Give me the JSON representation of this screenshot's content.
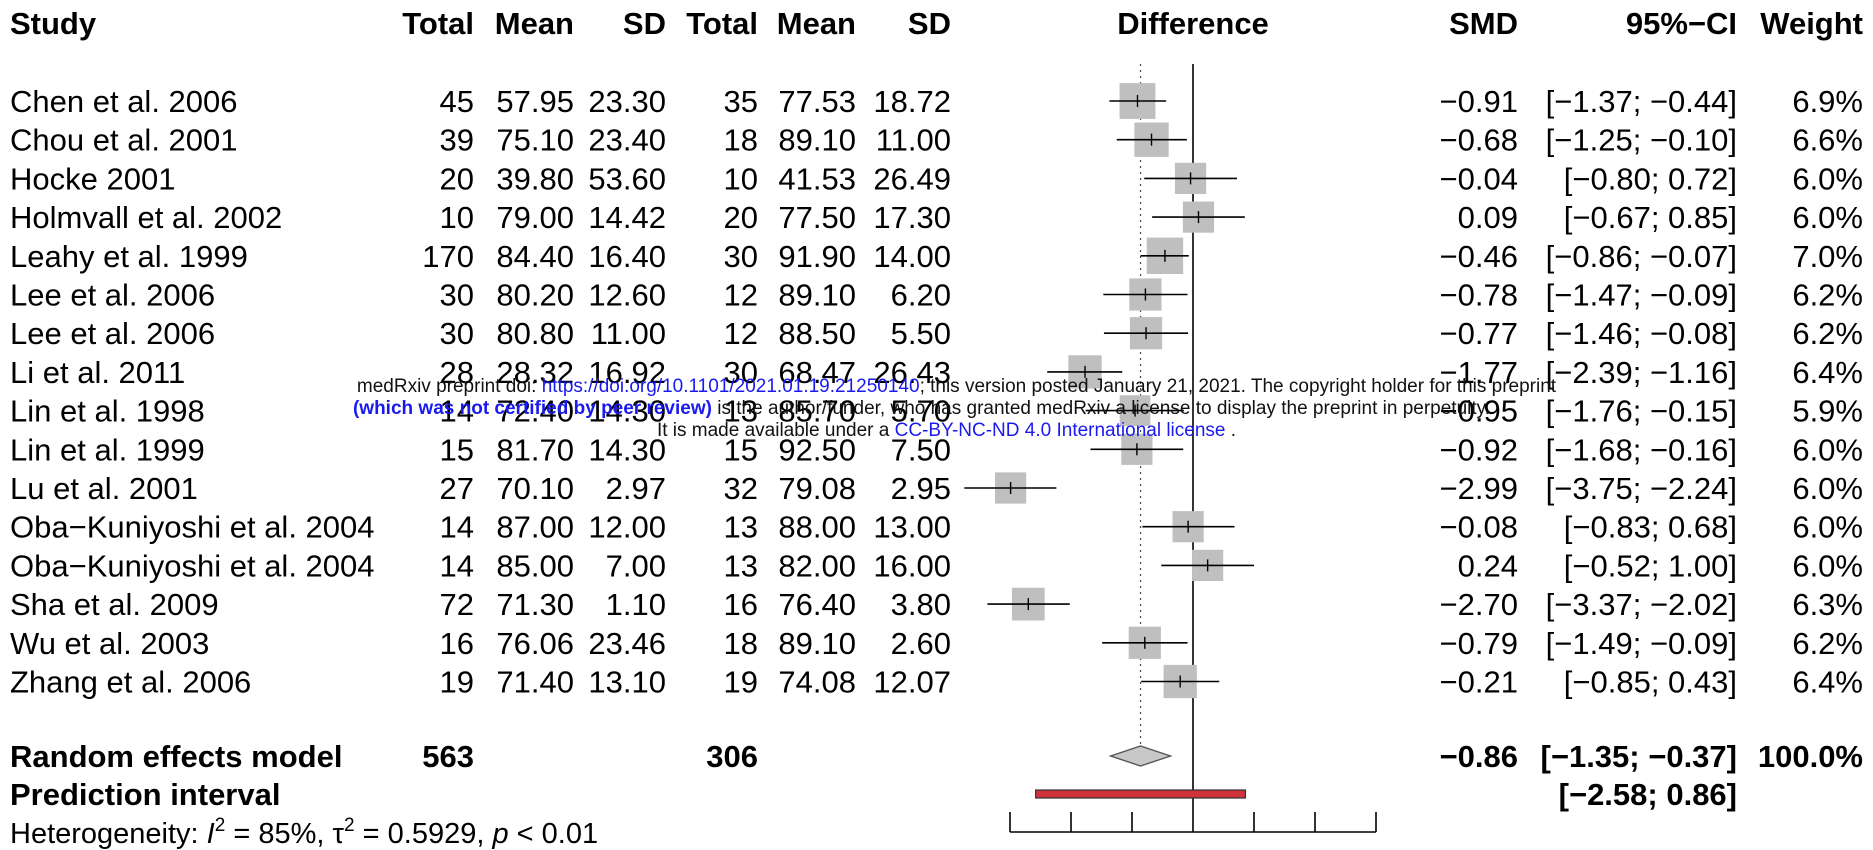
{
  "chart_data": {
    "type": "forest",
    "columns": {
      "study": "Study",
      "exp_total": "Total",
      "exp_mean": "Mean",
      "exp_sd": "SD",
      "ctrl_total": "Total",
      "ctrl_mean": "Mean",
      "ctrl_sd": "SD",
      "difference": "Difference",
      "smd": "SMD",
      "ci": "95%−CI",
      "weight": "Weight"
    },
    "studies": [
      {
        "name": "Chen et al. 2006",
        "n1": "45",
        "m1": "57.95",
        "sd1": "23.30",
        "n2": "35",
        "m2": "77.53",
        "sd2": "18.72",
        "smd_text": "−0.91",
        "ci_text": "[−1.37; −0.44]",
        "weight_text": "6.9%",
        "smd": -0.91,
        "lo": -1.37,
        "hi": -0.44,
        "w": 6.9
      },
      {
        "name": "Chou et al. 2001",
        "n1": "39",
        "m1": "75.10",
        "sd1": "23.40",
        "n2": "18",
        "m2": "89.10",
        "sd2": "11.00",
        "smd_text": "−0.68",
        "ci_text": "[−1.25; −0.10]",
        "weight_text": "6.6%",
        "smd": -0.68,
        "lo": -1.25,
        "hi": -0.1,
        "w": 6.6
      },
      {
        "name": "Hocke 2001",
        "n1": "20",
        "m1": "39.80",
        "sd1": "53.60",
        "n2": "10",
        "m2": "41.53",
        "sd2": "26.49",
        "smd_text": "−0.04",
        "ci_text": "[−0.80; 0.72]",
        "weight_text": "6.0%",
        "smd": -0.04,
        "lo": -0.8,
        "hi": 0.72,
        "w": 6.0
      },
      {
        "name": "Holmvall et al. 2002",
        "n1": "10",
        "m1": "79.00",
        "sd1": "14.42",
        "n2": "20",
        "m2": "77.50",
        "sd2": "17.30",
        "smd_text": "0.09",
        "ci_text": "[−0.67; 0.85]",
        "weight_text": "6.0%",
        "smd": 0.09,
        "lo": -0.67,
        "hi": 0.85,
        "w": 6.0
      },
      {
        "name": "Leahy et al. 1999",
        "n1": "170",
        "m1": "84.40",
        "sd1": "16.40",
        "n2": "30",
        "m2": "91.90",
        "sd2": "14.00",
        "smd_text": "−0.46",
        "ci_text": "[−0.86; −0.07]",
        "weight_text": "7.0%",
        "smd": -0.46,
        "lo": -0.86,
        "hi": -0.07,
        "w": 7.0
      },
      {
        "name": "Lee et al. 2006",
        "n1": "30",
        "m1": "80.20",
        "sd1": "12.60",
        "n2": "12",
        "m2": "89.10",
        "sd2": "6.20",
        "smd_text": "−0.78",
        "ci_text": "[−1.47; −0.09]",
        "weight_text": "6.2%",
        "smd": -0.78,
        "lo": -1.47,
        "hi": -0.09,
        "w": 6.2
      },
      {
        "name": "Lee et al. 2006",
        "n1": "30",
        "m1": "80.80",
        "sd1": "11.00",
        "n2": "12",
        "m2": "88.50",
        "sd2": "5.50",
        "smd_text": "−0.77",
        "ci_text": "[−1.46; −0.08]",
        "weight_text": "6.2%",
        "smd": -0.77,
        "lo": -1.46,
        "hi": -0.08,
        "w": 6.2
      },
      {
        "name": "Li et al. 2011",
        "n1": "28",
        "m1": "28.32",
        "sd1": "16.92",
        "n2": "30",
        "m2": "68.47",
        "sd2": "26.43",
        "smd_text": "−1.77",
        "ci_text": "[−2.39; −1.16]",
        "weight_text": "6.4%",
        "smd": -1.77,
        "lo": -2.39,
        "hi": -1.16,
        "w": 6.4
      },
      {
        "name": "Lin et al. 1998",
        "n1": "14",
        "m1": "72.40",
        "sd1": "14.30",
        "n2": "13",
        "m2": "85.70",
        "sd2": "5.70",
        "smd_text": "−0.95",
        "ci_text": "[−1.76; −0.15]",
        "weight_text": "5.9%",
        "smd": -0.95,
        "lo": -1.76,
        "hi": -0.15,
        "w": 5.9
      },
      {
        "name": "Lin et al. 1999",
        "n1": "15",
        "m1": "81.70",
        "sd1": "14.30",
        "n2": "15",
        "m2": "92.50",
        "sd2": "7.50",
        "smd_text": "−0.92",
        "ci_text": "[−1.68; −0.16]",
        "weight_text": "6.0%",
        "smd": -0.92,
        "lo": -1.68,
        "hi": -0.16,
        "w": 6.0
      },
      {
        "name": "Lu et al. 2001",
        "n1": "27",
        "m1": "70.10",
        "sd1": "2.97",
        "n2": "32",
        "m2": "79.08",
        "sd2": "2.95",
        "smd_text": "−2.99",
        "ci_text": "[−3.75; −2.24]",
        "weight_text": "6.0%",
        "smd": -2.99,
        "lo": -3.75,
        "hi": -2.24,
        "w": 6.0
      },
      {
        "name": "Oba−Kuniyoshi et al. 2004",
        "n1": "14",
        "m1": "87.00",
        "sd1": "12.00",
        "n2": "13",
        "m2": "88.00",
        "sd2": "13.00",
        "smd_text": "−0.08",
        "ci_text": "[−0.83; 0.68]",
        "weight_text": "6.0%",
        "smd": -0.08,
        "lo": -0.83,
        "hi": 0.68,
        "w": 6.0
      },
      {
        "name": "Oba−Kuniyoshi et al. 2004",
        "n1": "14",
        "m1": "85.00",
        "sd1": "7.00",
        "n2": "13",
        "m2": "82.00",
        "sd2": "16.00",
        "smd_text": "0.24",
        "ci_text": "[−0.52; 1.00]",
        "weight_text": "6.0%",
        "smd": 0.24,
        "lo": -0.52,
        "hi": 1.0,
        "w": 6.0
      },
      {
        "name": "Sha et al. 2009",
        "n1": "72",
        "m1": "71.30",
        "sd1": "1.10",
        "n2": "16",
        "m2": "76.40",
        "sd2": "3.80",
        "smd_text": "−2.70",
        "ci_text": "[−3.37; −2.02]",
        "weight_text": "6.3%",
        "smd": -2.7,
        "lo": -3.37,
        "hi": -2.02,
        "w": 6.3
      },
      {
        "name": "Wu et al. 2003",
        "n1": "16",
        "m1": "76.06",
        "sd1": "23.46",
        "n2": "18",
        "m2": "89.10",
        "sd2": "2.60",
        "smd_text": "−0.79",
        "ci_text": "[−1.49; −0.09]",
        "weight_text": "6.2%",
        "smd": -0.79,
        "lo": -1.49,
        "hi": -0.09,
        "w": 6.2
      },
      {
        "name": "Zhang et al. 2006",
        "n1": "19",
        "m1": "71.40",
        "sd1": "13.10",
        "n2": "19",
        "m2": "74.08",
        "sd2": "12.07",
        "smd_text": "−0.21",
        "ci_text": "[−0.85; 0.43]",
        "weight_text": "6.4%",
        "smd": -0.21,
        "lo": -0.85,
        "hi": 0.43,
        "w": 6.4
      }
    ],
    "pooled": {
      "label": "Random effects model",
      "n1": "563",
      "n2": "306",
      "smd_text": "−0.86",
      "ci_text": "[−1.35; −0.37]",
      "weight_text": "100.0%",
      "smd": -0.86,
      "lo": -1.35,
      "hi": -0.37
    },
    "prediction": {
      "label": "Prediction interval",
      "ci_text": "[−2.58; 0.86]",
      "lo": -2.58,
      "hi": 0.86
    },
    "heterogeneity": {
      "prefix": "Heterogeneity: ",
      "i2_symbol": "I",
      "i2_value": " = 85%, ",
      "tau_symbol": "τ",
      "tau_value": " = 0.5929, ",
      "p_symbol": "p",
      "p_value": " < 0.01"
    },
    "x_range": [
      -3,
      3
    ],
    "x_ticks": [
      -3,
      -2,
      -1,
      0,
      1,
      2,
      3
    ],
    "reference_line": 0,
    "colors": {
      "square": "#bfbfbf",
      "diamond": "#c8c8c8",
      "prediction_bar": "#d0333b",
      "line": "#000000"
    }
  },
  "watermark": {
    "line1_pre": "medRxiv preprint doi: ",
    "line1_link": "https://doi.org/10.1101/2021.01.19.21250140",
    "line1_post": "; this version posted January 21, 2021. The copyright holder for this preprint",
    "line2_emph": "(which was not certified by peer review)",
    "line2_post": " is the author/funder, who has granted medRxiv a license to display the preprint in perpetuity.",
    "line3_pre": "It is made available under a ",
    "line3_link": "CC-BY-NC-ND 4.0 International license",
    "line3_post": " ."
  }
}
